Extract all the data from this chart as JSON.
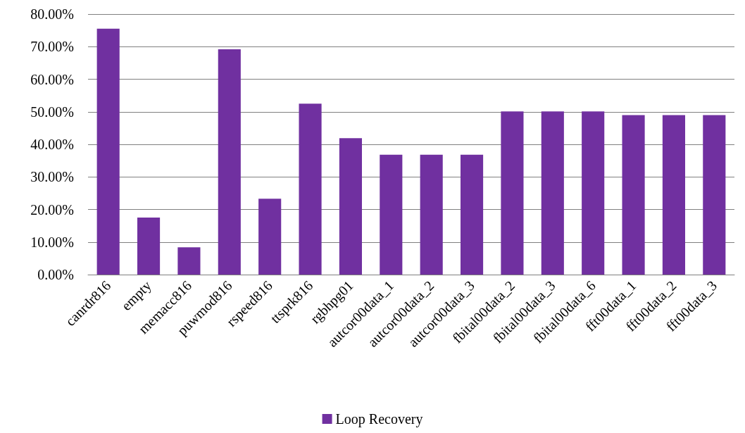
{
  "chart_data": {
    "type": "bar",
    "categories": [
      "canrdr816",
      "empty",
      "memacc816",
      "puwmod816",
      "rspeed816",
      "ttsprk816",
      "rgbhpg01",
      "autcor00data_1",
      "autcor00data_2",
      "autcor00data_3",
      "fbital00data_2",
      "fbital00data_3",
      "fbital00data_6",
      "fft00data_1",
      "fft00data_2",
      "fft00data_3"
    ],
    "series": [
      {
        "name": "Loop Recovery",
        "color": "#7030a0",
        "values": [
          75.5,
          17.5,
          8.4,
          69.2,
          23.3,
          52.5,
          41.9,
          36.8,
          36.8,
          36.8,
          50.1,
          50.1,
          50.1,
          49.0,
          49.0,
          49.0
        ]
      }
    ],
    "ylim": [
      0,
      80
    ],
    "yticks": [
      {
        "value": 0,
        "label": "0.00%"
      },
      {
        "value": 10,
        "label": "10.00%"
      },
      {
        "value": 20,
        "label": "20.00%"
      },
      {
        "value": 30,
        "label": "30.00%"
      },
      {
        "value": 40,
        "label": "40.00%"
      },
      {
        "value": 50,
        "label": "50.00%"
      },
      {
        "value": 60,
        "label": "60.00%"
      },
      {
        "value": 70,
        "label": "70.00%"
      },
      {
        "value": 80,
        "label": "80.00%"
      }
    ],
    "grid": "y",
    "legend": "bottom"
  }
}
